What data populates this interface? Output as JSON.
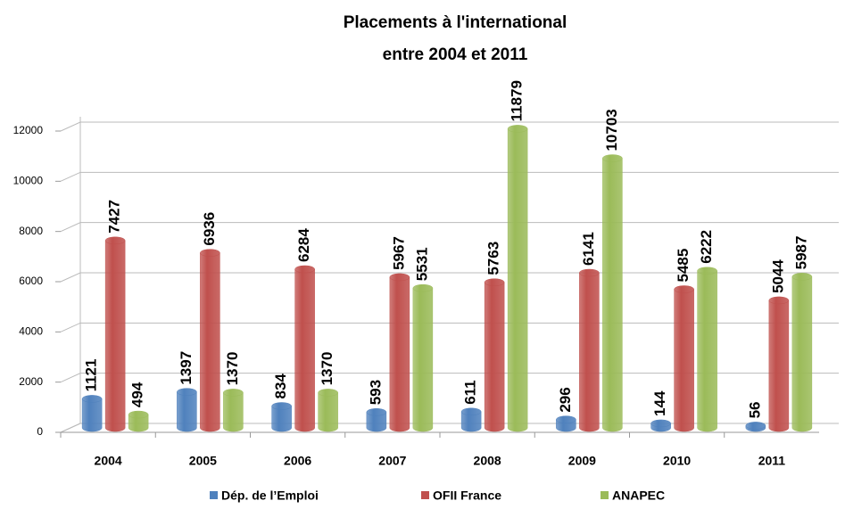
{
  "chart_data": {
    "type": "bar",
    "title": "Placements à l'international",
    "subtitle": "entre 2004 et 2011",
    "categories": [
      "2004",
      "2005",
      "2006",
      "2007",
      "2008",
      "2009",
      "2010",
      "2011"
    ],
    "series": [
      {
        "name": "Dép. de l’Emploi",
        "color": "#4f81bd",
        "values": [
          1121,
          1397,
          834,
          593,
          611,
          296,
          144,
          56
        ]
      },
      {
        "name": "OFII  France",
        "color": "#c0504d",
        "values": [
          7427,
          6936,
          6284,
          5967,
          5763,
          6141,
          5485,
          5044
        ]
      },
      {
        "name": "ANAPEC",
        "color": "#9bbb59",
        "values": [
          494,
          1370,
          1370,
          5531,
          11879,
          10703,
          6222,
          5987
        ]
      }
    ],
    "ylim": [
      0,
      12000
    ],
    "yticks": [
      0,
      2000,
      4000,
      6000,
      8000,
      10000,
      12000
    ],
    "grid": true,
    "legend": "bottom"
  }
}
